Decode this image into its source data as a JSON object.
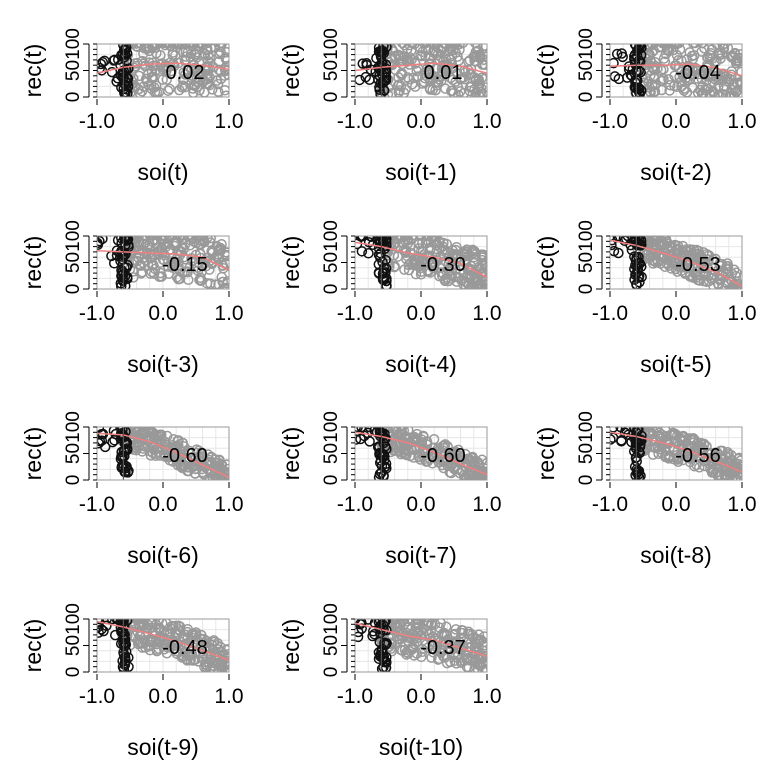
{
  "chart_data": [
    {
      "type": "scatter",
      "xlabel": "soi(t)",
      "ylabel": "rec(t)",
      "correlation": "0.02",
      "xlim": [
        -1.0,
        1.0
      ],
      "ylim": [
        0,
        100
      ],
      "xticks": [
        "-1.0",
        "0.0",
        "1.0"
      ],
      "yticks": [
        "0",
        "50",
        "100"
      ],
      "smoother": [
        [
          -1.0,
          45
        ],
        [
          -0.6,
          56
        ],
        [
          -0.2,
          62
        ],
        [
          0.2,
          64
        ],
        [
          0.6,
          60
        ],
        [
          1.0,
          52
        ]
      ]
    },
    {
      "type": "scatter",
      "xlabel": "soi(t-1)",
      "ylabel": "rec(t)",
      "correlation": "0.01",
      "xlim": [
        -1.0,
        1.0
      ],
      "ylim": [
        0,
        100
      ],
      "xticks": [
        "-1.0",
        "0.0",
        "1.0"
      ],
      "yticks": [
        "0",
        "50",
        "100"
      ],
      "smoother": [
        [
          -1.0,
          50
        ],
        [
          -0.6,
          56
        ],
        [
          -0.2,
          60
        ],
        [
          0.2,
          64
        ],
        [
          0.6,
          58
        ],
        [
          1.0,
          45
        ]
      ]
    },
    {
      "type": "scatter",
      "xlabel": "soi(t-2)",
      "ylabel": "rec(t)",
      "correlation": "-0.04",
      "xlim": [
        -1.0,
        1.0
      ],
      "ylim": [
        0,
        100
      ],
      "xticks": [
        "-1.0",
        "0.0",
        "1.0"
      ],
      "yticks": [
        "0",
        "50",
        "100"
      ],
      "smoother": [
        [
          -1.0,
          58
        ],
        [
          -0.6,
          60
        ],
        [
          -0.2,
          60
        ],
        [
          0.2,
          62
        ],
        [
          0.6,
          55
        ],
        [
          1.0,
          40
        ]
      ]
    },
    {
      "type": "scatter",
      "xlabel": "soi(t-3)",
      "ylabel": "rec(t)",
      "correlation": "-0.15",
      "xlim": [
        -1.0,
        1.0
      ],
      "ylim": [
        0,
        100
      ],
      "xticks": [
        "-1.0",
        "0.0",
        "1.0"
      ],
      "yticks": [
        "0",
        "50",
        "100"
      ],
      "smoother": [
        [
          -1.0,
          72
        ],
        [
          -0.6,
          70
        ],
        [
          -0.2,
          68
        ],
        [
          0.2,
          66
        ],
        [
          0.6,
          60
        ],
        [
          1.0,
          35
        ]
      ]
    },
    {
      "type": "scatter",
      "xlabel": "soi(t-4)",
      "ylabel": "rec(t)",
      "correlation": "-0.30",
      "xlim": [
        -1.0,
        1.0
      ],
      "ylim": [
        0,
        100
      ],
      "xticks": [
        "-1.0",
        "0.0",
        "1.0"
      ],
      "yticks": [
        "0",
        "50",
        "100"
      ],
      "smoother": [
        [
          -1.0,
          88
        ],
        [
          -0.6,
          80
        ],
        [
          -0.2,
          68
        ],
        [
          0.2,
          60
        ],
        [
          0.6,
          48
        ],
        [
          1.0,
          22
        ]
      ]
    },
    {
      "type": "scatter",
      "xlabel": "soi(t-5)",
      "ylabel": "rec(t)",
      "correlation": "-0.53",
      "xlim": [
        -1.0,
        1.0
      ],
      "ylim": [
        0,
        100
      ],
      "xticks": [
        "-1.0",
        "0.0",
        "1.0"
      ],
      "yticks": [
        "0",
        "50",
        "100"
      ],
      "smoother": [
        [
          -1.0,
          92
        ],
        [
          -0.6,
          82
        ],
        [
          -0.2,
          68
        ],
        [
          0.2,
          52
        ],
        [
          0.6,
          32
        ],
        [
          1.0,
          5
        ]
      ]
    },
    {
      "type": "scatter",
      "xlabel": "soi(t-6)",
      "ylabel": "rec(t)",
      "correlation": "-0.60",
      "xlim": [
        -1.0,
        1.0
      ],
      "ylim": [
        0,
        100
      ],
      "xticks": [
        "-1.0",
        "0.0",
        "1.0"
      ],
      "yticks": [
        "0",
        "50",
        "100"
      ],
      "smoother": [
        [
          -1.0,
          88
        ],
        [
          -0.6,
          85
        ],
        [
          -0.2,
          72
        ],
        [
          0.2,
          52
        ],
        [
          0.6,
          28
        ],
        [
          1.0,
          5
        ]
      ]
    },
    {
      "type": "scatter",
      "xlabel": "soi(t-7)",
      "ylabel": "rec(t)",
      "correlation": "-0.60",
      "xlim": [
        -1.0,
        1.0
      ],
      "ylim": [
        0,
        100
      ],
      "xticks": [
        "-1.0",
        "0.0",
        "1.0"
      ],
      "yticks": [
        "0",
        "50",
        "100"
      ],
      "smoother": [
        [
          -1.0,
          90
        ],
        [
          -0.6,
          82
        ],
        [
          -0.2,
          70
        ],
        [
          0.2,
          52
        ],
        [
          0.6,
          30
        ],
        [
          1.0,
          10
        ]
      ]
    },
    {
      "type": "scatter",
      "xlabel": "soi(t-8)",
      "ylabel": "rec(t)",
      "correlation": "-0.56",
      "xlim": [
        -1.0,
        1.0
      ],
      "ylim": [
        0,
        100
      ],
      "xticks": [
        "-1.0",
        "0.0",
        "1.0"
      ],
      "yticks": [
        "0",
        "50",
        "100"
      ],
      "smoother": [
        [
          -1.0,
          90
        ],
        [
          -0.6,
          82
        ],
        [
          -0.2,
          70
        ],
        [
          0.2,
          55
        ],
        [
          0.6,
          35
        ],
        [
          1.0,
          15
        ]
      ]
    },
    {
      "type": "scatter",
      "xlabel": "soi(t-9)",
      "ylabel": "rec(t)",
      "correlation": "-0.48",
      "xlim": [
        -1.0,
        1.0
      ],
      "ylim": [
        0,
        100
      ],
      "xticks": [
        "-1.0",
        "0.0",
        "1.0"
      ],
      "yticks": [
        "0",
        "50",
        "100"
      ],
      "smoother": [
        [
          -1.0,
          95
        ],
        [
          -0.6,
          85
        ],
        [
          -0.2,
          72
        ],
        [
          0.2,
          58
        ],
        [
          0.6,
          40
        ],
        [
          1.0,
          22
        ]
      ]
    },
    {
      "type": "scatter",
      "xlabel": "soi(t-10)",
      "ylabel": "rec(t)",
      "correlation": "-0.37",
      "xlim": [
        -1.0,
        1.0
      ],
      "ylim": [
        0,
        100
      ],
      "xticks": [
        "-1.0",
        "0.0",
        "1.0"
      ],
      "yticks": [
        "0",
        "50",
        "100"
      ],
      "smoother": [
        [
          -1.0,
          92
        ],
        [
          -0.6,
          80
        ],
        [
          -0.2,
          68
        ],
        [
          0.2,
          60
        ],
        [
          0.6,
          45
        ],
        [
          1.0,
          30
        ]
      ]
    }
  ],
  "colors": {
    "points_gray": "#999999",
    "points_black": "#111111",
    "smoother": "#f08080",
    "grid": "#e6e6e6",
    "frame": "#999999"
  }
}
